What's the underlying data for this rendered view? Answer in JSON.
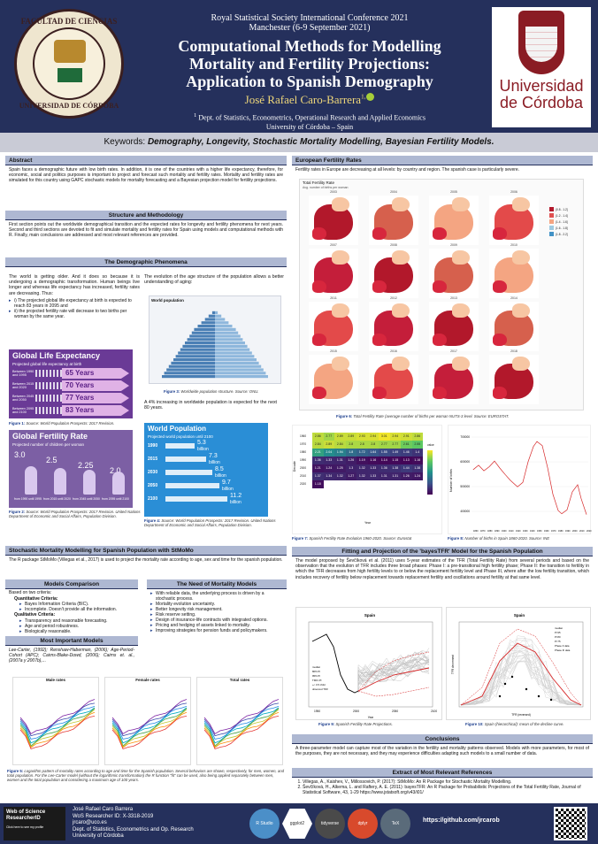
{
  "header": {
    "conference": "Royal Statistical Society International Conference 2021",
    "location": "Manchester (6-9 September 2021)",
    "title_line1": "Computational Methods for Modelling",
    "title_line2": "Mortality and Fertility Projections:",
    "title_line3": "Application to Spanish Demography",
    "author": "José Rafael Caro-Barrera",
    "author_sup": "1,",
    "affil_sup": "1",
    "affiliation": "Dept. of Statistics, Econometrics, Operational Research and Applied Economics",
    "university": "University of Córdoba – Spain",
    "seal_top": "FACULTAD DE CIENCIAS",
    "seal_bottom": "UNIVERSIDAD DE CÓRDOBA",
    "uco_line1": "Universidad",
    "uco_line2": "de Córdoba"
  },
  "keywords": {
    "label": "Keywords:",
    "value": "Demography, Longevity, Stochastic Mortality Modelling, Bayesian Fertility Models."
  },
  "abstract": {
    "heading": "Abstract",
    "text": "Spain faces a demographic future with low birth rates. In addition, it is one of the countries with a higher life expectancy, therefore, for economic, social and politics purposes is important to project and forecast such mortality and fertility rates. Mortality and fertility rates are simulated for this country using GAPC stochastic models for mortality forecasting and a Bayesian projection model for fertility projections."
  },
  "structure": {
    "heading": "Structure and Methodology",
    "text": "First section points out the worldwide demographical transition and the expected rates for longevity and fertility phenomena for next years. Second and third sections are devoted to fit and simulate mortality and fertility rates for Spain using models and computational methods with R. Finally, main conclusions are addressed and most relevant references are provided."
  },
  "demographic": {
    "heading": "The Demographic Phenomena",
    "intro": "The world is getting older. And it does so because it is undergoing a demographic transformation. Human beings live longer and whereas life expectancy has increased, fertility rates are decreasing. Thus:",
    "bullet1": "i) The projected global life expectancy at birth is expected to reach 83 years in 2095 and",
    "bullet2": "ii) the projected fertility rate will decrease to two births per woman by the same year.",
    "pyramid_text": "The evolution of the age structure of the population allows a better understanding of aging:",
    "pyramid_title": "World population",
    "increase_text": "A 4% increasing in worldwide population is expected for the next 80 years.",
    "gle_title": "Global Life Expectancy",
    "gle_sub": "Projected global life expectancy at birth",
    "gle_rows": [
      {
        "period": "Between 1990 and 1995",
        "value": "65 Years"
      },
      {
        "period": "Between 2015 and 2020",
        "value": "70 Years"
      },
      {
        "period": "Between 2045 and 2050",
        "value": "77 Years"
      },
      {
        "period": "Between 2095 and 2100",
        "value": "83 Years"
      }
    ],
    "gfr_title": "Global Fertility Rate",
    "gfr_sub": "Projected number of children per woman",
    "gfr_values": [
      "3.0",
      "2.5",
      "2.25",
      "2.0"
    ],
    "gfr_periods": [
      "from 1990 until 1995",
      "from 2015 until 2020",
      "from 2045 until 2050",
      "from 2095 until 2100"
    ],
    "wp_title": "World Population",
    "wp_sub": "Projected world population until 2100",
    "wp_rows": [
      {
        "year": "1990",
        "value": "5.3",
        "unit": "billion",
        "frac": 0.47
      },
      {
        "year": "2015",
        "value": "7.3",
        "unit": "billion",
        "frac": 0.65
      },
      {
        "year": "2030",
        "value": "8.5",
        "unit": "billion",
        "frac": 0.76
      },
      {
        "year": "2050",
        "value": "9.7",
        "unit": "billion",
        "frac": 0.87
      },
      {
        "year": "2100",
        "value": "11.2",
        "unit": "billion",
        "frac": 1.0
      }
    ],
    "fig1": "Figure 1:",
    "fig1_text": "Source: World Population Prospects: 2017 Revision.",
    "fig2": "Figure 2:",
    "fig2_text": "Source: World Population Prospects: 2017 Revision. United Nations Department of Economic and Social Affairs, Population Division.",
    "fig3": "Figure 3:",
    "fig3_text": "Worldwide population structure. Source: ONU.",
    "fig4": "Figure 4:",
    "fig4_text": "Source: World Population Prospects: 2017 Revision. United Nations Department of Economic and Social Affairs, Population Division."
  },
  "mortality": {
    "heading": "Stochastic Mortality Modelling for Spanish Population with StMoMo",
    "intro": "The R package StMoMo (Villegas et al., 2017) is used to project the mortality rate according to age, sex and time for the spanish population.",
    "comparison_heading": "Models Comparison",
    "comparison_intro": "Based on two criteria:",
    "quant": "Quantitative Criteria:",
    "quant_items": [
      "Bayes Information Criteria (BIC).",
      "Incomplete. Doesn't provide all the information."
    ],
    "qual": "Qualitative Criteria:",
    "qual_items": [
      "Transparency and reasonable forecasting.",
      "Age and period robustness.",
      "Biologically reasonable."
    ],
    "important_heading": "Most Important Models",
    "important_text": "Lee-Carter, (1992); Renshaw-Haberman, (2006); Age-Period-Cohort (APC); Cairns-Blake-Dowd, (2006); Cairns et. al., (2007a y 2007b),...",
    "need_heading": "The Need of Mortality Models",
    "need_items": [
      "With reliable data, the underlying process is driven by a stochastic process.",
      "Mortality evolution uncertainty.",
      "Better longevity risk management.",
      "Risk reserve setting.",
      "Design of insurance-life contracts with integrated options.",
      "Pricing and hedging of assets linked to mortality.",
      "Improving strategies for pension funds and policymakers."
    ],
    "plot_titles": [
      "Male rates",
      "Female rates",
      "Total rates"
    ],
    "fig5": "Figure 5:",
    "fig5_text": "Logarithm pattern of mortality rates according to age and time for the Spanish population. Several behaviors are shown, respectively, for men, women, and total population. For the Lee-Carter model (without the logarithmic transformation) the R function \"fit\" can be used, also being applied separately between men, women and the total population and considering a maximum age of 100 years."
  },
  "european": {
    "heading": "European Fertility Rates",
    "intro": "Fertility rates in Europe are decreasing at all levels: by country and region. The spanish case is particularly severe.",
    "maps_title": "Total Fertility Rate",
    "maps_sub": "Avg. number of births per woman",
    "map_years": [
      "2003",
      "2004",
      "2005",
      "2006",
      "2007",
      "2008",
      "2009",
      "2010",
      "2011",
      "2012",
      "2013",
      "2014",
      "2015",
      "2016",
      "2017",
      "2018"
    ],
    "legend": [
      "(0.8 - 1.2]",
      "(1.2 - 1.4]",
      "(1.4 - 1.6]",
      "(1.6 - 1.8]",
      "(1.8 - 2.2]"
    ],
    "fig6": "Figure 6:",
    "fig6_text": "Total Fertility Rate (average number of births per woman NUTS-3 level. Source: EUROSTAT.",
    "fig7": "Figure 7:",
    "fig7_text": "Spanish Fertility Rate Evolution 1960-2020. Source: Eurostat",
    "fig8": "Figure 8:",
    "fig8_text": "Number of births in Spain 1860-2020. Source: INE",
    "heat_ylabel": "Decade",
    "heat_xlabel": "Year",
    "heat_legend_label": "value",
    "heat_values": [
      [
        2.86,
        2.77,
        2.89,
        2.89,
        2.93,
        2.94,
        3.01,
        2.94,
        2.91,
        2.86
      ],
      [
        2.84,
        2.89,
        2.84,
        2.8,
        2.8,
        2.8,
        2.77,
        2.77,
        2.61,
        2.55
      ],
      [
        2.21,
        2.04,
        1.94,
        1.8,
        1.72,
        1.64,
        1.55,
        1.49,
        1.46,
        1.4
      ],
      [
        1.36,
        1.33,
        1.31,
        1.26,
        1.19,
        1.16,
        1.14,
        1.15,
        1.13,
        1.16
      ],
      [
        1.21,
        1.24,
        1.25,
        1.3,
        1.32,
        1.33,
        1.36,
        1.38,
        1.44,
        1.38
      ],
      [
        1.37,
        1.34,
        1.32,
        1.27,
        1.32,
        1.33,
        1.31,
        1.31,
        1.26,
        1.24
      ],
      [
        1.18,
        null,
        null,
        null,
        null,
        null,
        null,
        null,
        null,
        null
      ]
    ],
    "heat_decades": [
      "1960",
      "1970",
      "1980",
      "1990",
      "2000",
      "2010",
      "2020"
    ],
    "births_ylabel": "Number of births",
    "births_yticks": [
      "700000",
      "600000",
      "500000",
      "400000"
    ],
    "births_xticks": [
      "1860",
      "1870",
      "1880",
      "1890",
      "1900",
      "1910",
      "1920",
      "1930",
      "1940",
      "1950",
      "1960",
      "1970",
      "1980",
      "1990",
      "2000",
      "2010",
      "2020"
    ]
  },
  "bayes": {
    "heading": "Fitting and Projection of the 'bayesTFR' Model for the Spanish Population",
    "text": "The model proposed by Ševčíková et al. (2011) uses 5-year estimates of the TFR (Total Fertility Rate) from several periods and based on the observation that the evolution of TFR includes three broad phases: Phase I: a pre-transitional high fertility phase; Phase II: the transition to fertility in which the TFR decreases from high fertility levels to or below the replacement fertility level and Phase III, where after the low fertility transition, which includes recovery of fertility below replacement towards replacement fertility and oscillations around fertility at that same level.",
    "plot1_title": "Spain",
    "plot2_title": "Spain",
    "plot1_legend": [
      "median",
      "80% PI",
      "95% PI",
      "TFR1 PI",
      "+/- 0.5 child",
      "observed TFR"
    ],
    "plot2_legend": [
      "median",
      "PI 95",
      "PI 80",
      "PI 75",
      "Phase II data",
      "Phase III data"
    ],
    "plot1_x": [
      "1950",
      "2000",
      "2050",
      "2100"
    ],
    "plot1_xlabel": "Year",
    "plot2_xlabel": "TFR (reversed)",
    "plot2_ylabel": "TFR decrement",
    "fig9": "Figure 9:",
    "fig9_text": "Spanish Fertility Rate Projections.",
    "fig10": "Figure 10:",
    "fig10_text": "Spain (hierarchical): mean of the decline curve."
  },
  "conclusions": {
    "heading": "Conclusions",
    "text": "A three-parameter model can capture most of the variation in the fertility and mortality patterns observed. Models with more parameters, for most of the purposes, they are not necessary, and they may experience difficulties adapting such models to a small number of data."
  },
  "references": {
    "heading": "Extract of Most Relevant References",
    "items": [
      "Villegas, A., Kaishev, V., Millossovich, P. (2017): StMoMo: An R Package for Stochastic Mortality Modelling.",
      "Ševčíková, H., Alkema, L. and Raftery, A. E. (2011): bayesTFR: An R Package for Probabilistic Projections of the Total Fertility Rate, Journal of Statistical Software, 43, 1-29 https://www.jstatsoft.org/v43/i01/"
    ]
  },
  "footer": {
    "wos_line1": "Web of Science",
    "wos_line2": "ResearcherID",
    "wos_line3": "Click here to see my profile",
    "name": "José Rafael Caro Barrera",
    "wos_id": "WoS Researcher ID: X-3318-2019",
    "email": "jrcaro@uco.es",
    "dept1": "Dept. of Statistics, Econometrics and Op. Research",
    "dept2": "University of Córdoba",
    "logos": [
      "R Studio",
      "ggplot2",
      "tidyverse",
      "dplyr",
      "TeX"
    ],
    "github": "https://github.com/jrcarob"
  },
  "colors": {
    "navy": "#25305c",
    "section": "#aeb8d2",
    "uco_red": "#8a1c24",
    "map_red": "#d7263d"
  }
}
